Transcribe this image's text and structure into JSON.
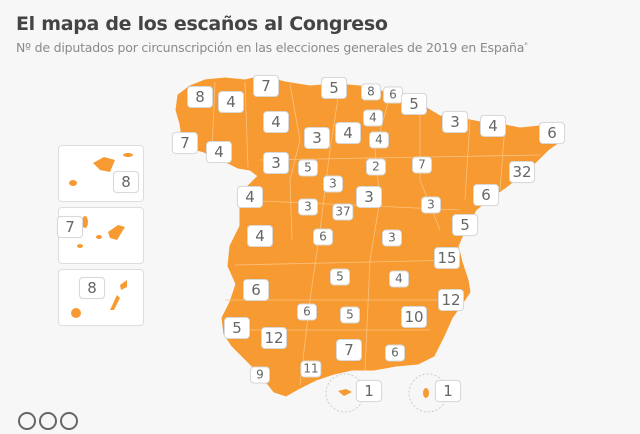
{
  "title": "El mapa de los escaños al Congreso",
  "subtitle": "Nº de diputados por circunscripción en las elecciones generales de 2019 en España",
  "subtitle_mark": "*",
  "colors": {
    "region": "#f79a31",
    "border": "#fbc27f",
    "label_text": "#666666"
  },
  "seats": {
    "a_coruna": "8",
    "lugo": "4",
    "asturias": "7",
    "cantabria": "5",
    "bizkaia": "8",
    "gipuzkoa": "6",
    "navarra": "5",
    "leon": "4",
    "huesca": "3",
    "lleida": "4",
    "girona": "6",
    "pontevedra": "7",
    "ourense": "4",
    "palencia": "3",
    "burgos": "4",
    "araba": "4",
    "la_rioja": "4",
    "zamora": "3",
    "valladolid": "5",
    "soria": "2",
    "zaragoza": "7",
    "barcelona": "32",
    "segovia": "3",
    "guadalajara": "3",
    "salamanca": "4",
    "tarragona": "6",
    "avila": "3",
    "madrid": "37",
    "teruel": "3",
    "castellon": "5",
    "caceres": "4",
    "toledo": "6",
    "cuenca": "3",
    "valencia": "15",
    "ciudad_real": "5",
    "albacete": "4",
    "badajoz": "6",
    "alicante": "12",
    "cordoba": "6",
    "jaen": "5",
    "murcia": "10",
    "huelva": "5",
    "sevilla": "12",
    "granada": "7",
    "almeria": "6",
    "cadiz": "9",
    "malaga": "11",
    "ceuta": "1",
    "melilla": "1",
    "baleares": "8",
    "santa_cruz_tenerife": "7",
    "las_palmas": "8"
  }
}
